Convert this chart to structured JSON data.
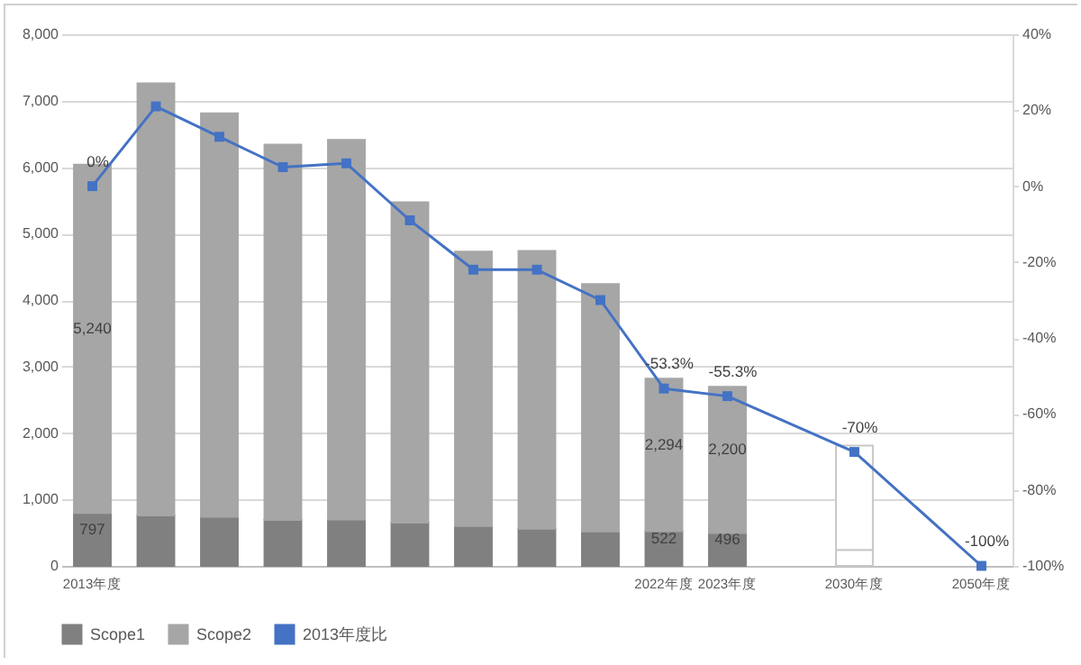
{
  "chart_data": {
    "type": "bar",
    "stacked": true,
    "categories": [
      "2013年度",
      null,
      null,
      null,
      null,
      null,
      null,
      null,
      null,
      "2022年度",
      "2023年度",
      null,
      "2030年度",
      null,
      "2050年度"
    ],
    "series": [
      {
        "name": "Scope1",
        "color": "#808080",
        "colors": [
          "#808080",
          "#808080",
          "#808080",
          "#808080",
          "#808080",
          "#808080",
          "#808080",
          "#808080",
          "#808080",
          "#808080",
          "#808080",
          null,
          "#ffffff",
          null,
          null
        ],
        "values": [
          797,
          760,
          740,
          690,
          700,
          650,
          600,
          560,
          520,
          522,
          496,
          null,
          240,
          null,
          null
        ],
        "value_labels": [
          "797",
          null,
          null,
          null,
          null,
          null,
          null,
          null,
          null,
          "522",
          "496",
          null,
          null,
          null,
          null
        ]
      },
      {
        "name": "Scope2",
        "color": "#a6a6a6",
        "colors": [
          "#a6a6a6",
          "#a6a6a6",
          "#a6a6a6",
          "#a6a6a6",
          "#a6a6a6",
          "#a6a6a6",
          "#a6a6a6",
          "#a6a6a6",
          "#a6a6a6",
          "#a6a6a6",
          "#a6a6a6",
          null,
          "#ffffff",
          null,
          null
        ],
        "values": [
          5240,
          6500,
          6070,
          5650,
          5710,
          4820,
          4130,
          4180,
          3720,
          2294,
          2200,
          null,
          1570,
          null,
          null
        ],
        "value_labels": [
          "5,240",
          null,
          null,
          null,
          null,
          null,
          null,
          null,
          null,
          "2,294",
          "2,200",
          null,
          null,
          null,
          null
        ]
      },
      {
        "name": "2013年度比",
        "type": "line",
        "axis": "y2",
        "color": "#4472c4",
        "values": [
          0,
          21,
          13,
          5,
          6,
          -9,
          -22,
          -22,
          -30,
          -53.3,
          -55.3,
          null,
          -70,
          null,
          -100
        ],
        "value_labels": [
          "0%",
          null,
          null,
          null,
          null,
          null,
          null,
          null,
          null,
          "-53.3%",
          "-55.3%",
          null,
          "-70%",
          null,
          "-100%"
        ]
      }
    ],
    "ylim": [
      0,
      8000
    ],
    "yticks": [
      0,
      {
        "value": 1000,
        "label": "1,000"
      },
      {
        "value": 2000,
        "label": "2,000"
      },
      {
        "value": 3000,
        "label": "3,000"
      },
      {
        "value": 4000,
        "label": "4,000"
      },
      {
        "value": 5000,
        "label": "5,000"
      },
      {
        "value": 6000,
        "label": "6,000"
      },
      {
        "value": 7000,
        "label": "7,000"
      },
      {
        "value": 8000,
        "label": "8,000"
      }
    ],
    "y2lim": [
      -100,
      40
    ],
    "y2ticks": [
      {
        "value": -100,
        "label": "-100%"
      },
      {
        "value": -80,
        "label": "-80%"
      },
      {
        "value": -60,
        "label": "-60%"
      },
      {
        "value": -40,
        "label": "-40%"
      },
      {
        "value": -20,
        "label": "-20%"
      },
      {
        "value": 0,
        "label": "0%"
      },
      {
        "value": 20,
        "label": "20%"
      },
      {
        "value": 40,
        "label": "40%"
      }
    ],
    "grid": "y",
    "legend": "bottom",
    "marker": "square",
    "line_style": "solid"
  }
}
